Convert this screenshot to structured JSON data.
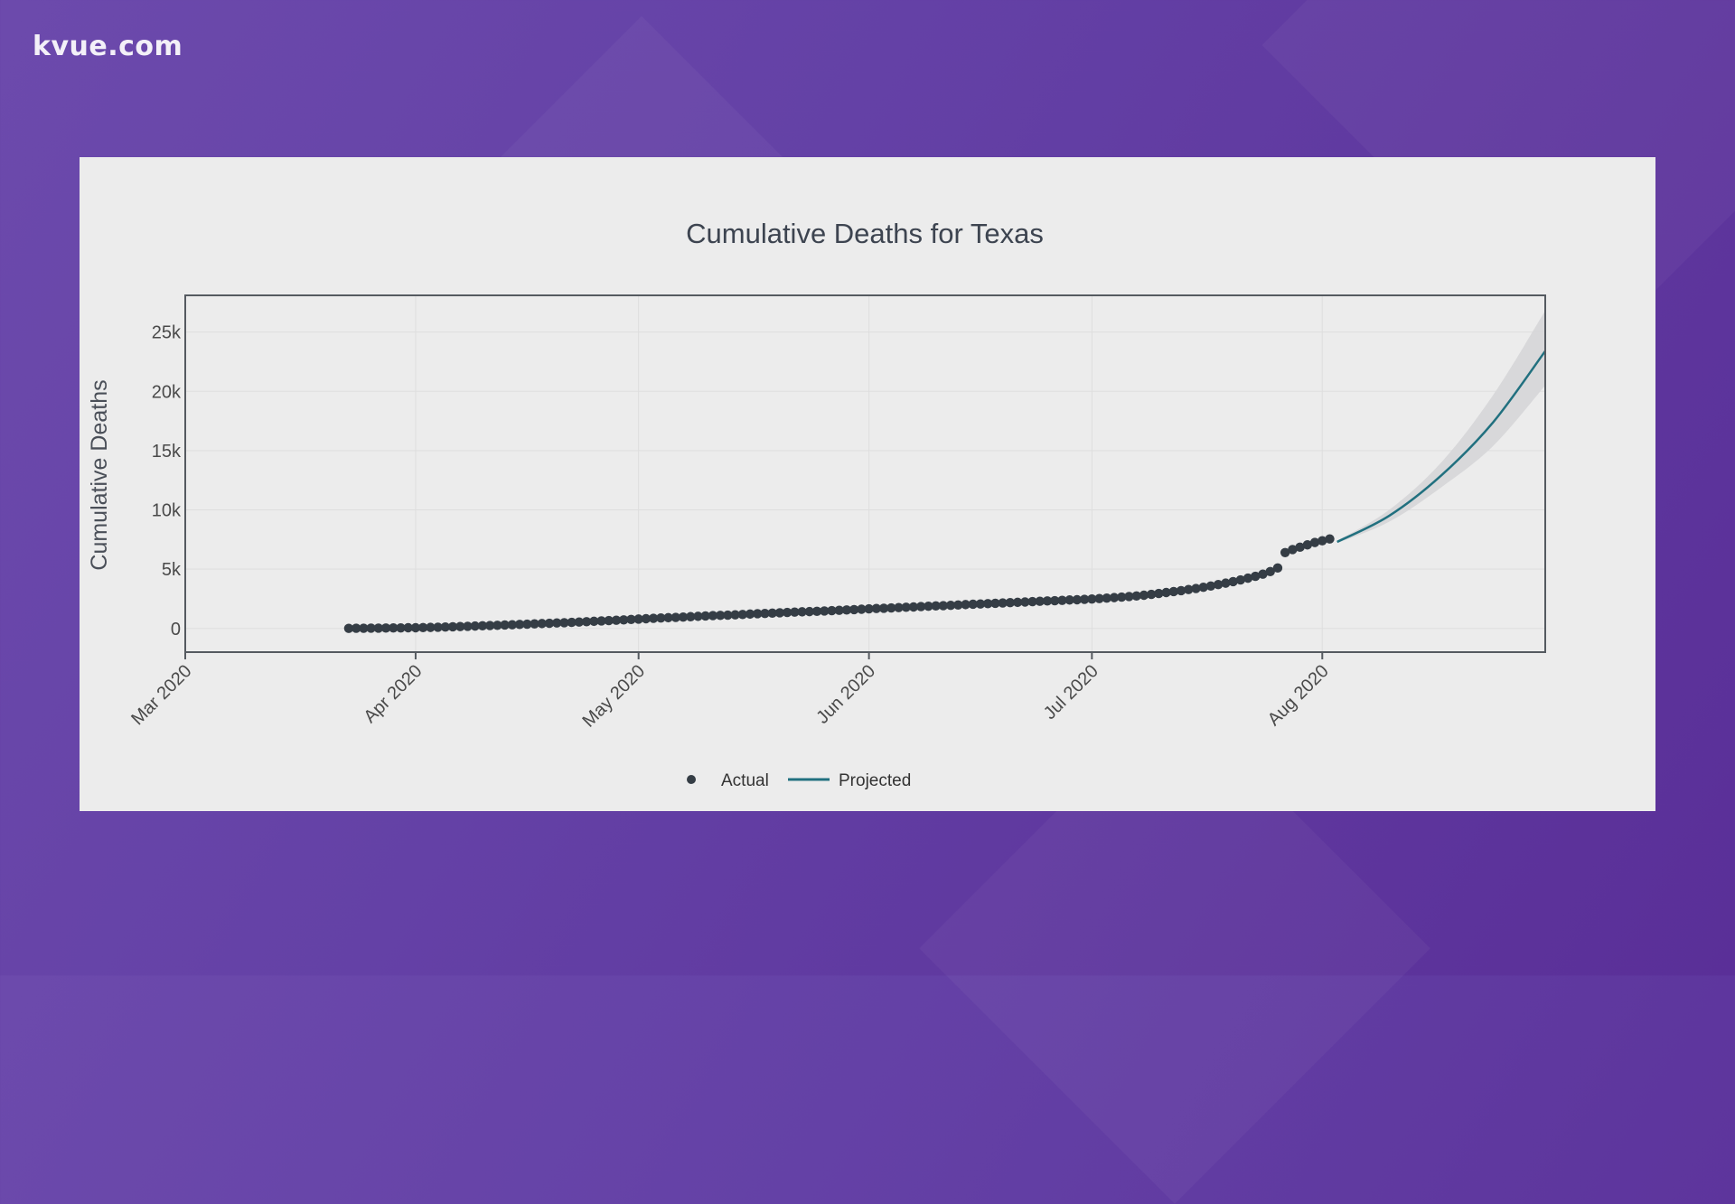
{
  "brand": {
    "logo_text": "kvue.com"
  },
  "colors": {
    "actual": "#353d45",
    "projected": "#21707f",
    "band": "#d6d6d8",
    "grid": "#dedede",
    "frame": "#555a60"
  },
  "chart_data": {
    "type": "scatter+line",
    "title": "Cumulative Deaths for Texas",
    "xlabel": "",
    "ylabel": "Cumulative Deaths",
    "ylim": [
      -2000,
      28100
    ],
    "xlim": [
      "2020-03-01",
      "2020-08-31"
    ],
    "y_ticks": [
      {
        "value": 0,
        "label": "0"
      },
      {
        "value": 5000,
        "label": "5k"
      },
      {
        "value": 10000,
        "label": "10k"
      },
      {
        "value": 15000,
        "label": "15k"
      },
      {
        "value": 20000,
        "label": "20k"
      },
      {
        "value": 25000,
        "label": "25k"
      }
    ],
    "x_ticks": [
      {
        "date": "2020-03-01",
        "label": "Mar 2020"
      },
      {
        "date": "2020-04-01",
        "label": "Apr 2020"
      },
      {
        "date": "2020-05-01",
        "label": "May 2020"
      },
      {
        "date": "2020-06-01",
        "label": "Jun 2020"
      },
      {
        "date": "2020-07-01",
        "label": "Jul 2020"
      },
      {
        "date": "2020-08-01",
        "label": "Aug 2020"
      }
    ],
    "grid": true,
    "legend": {
      "placement": "bottom-center",
      "entries": [
        {
          "name": "Actual",
          "marker": "dot"
        },
        {
          "name": "Projected",
          "marker": "line"
        }
      ]
    },
    "series": [
      {
        "name": "Actual",
        "kind": "scatter",
        "start_date": "2020-03-23",
        "values": [
          8,
          12,
          17,
          22,
          27,
          34,
          41,
          44,
          58,
          58,
          70,
          86,
          103,
          120,
          140,
          160,
          180,
          200,
          222,
          244,
          266,
          288,
          310,
          335,
          360,
          385,
          410,
          435,
          460,
          485,
          510,
          540,
          570,
          600,
          630,
          660,
          690,
          720,
          760,
          790,
          820,
          850,
          880,
          905,
          930,
          960,
          990,
          1020,
          1050,
          1080,
          1100,
          1120,
          1150,
          1180,
          1210,
          1240,
          1260,
          1290,
          1320,
          1350,
          1380,
          1400,
          1420,
          1440,
          1470,
          1500,
          1530,
          1560,
          1590,
          1620,
          1650,
          1680,
          1700,
          1730,
          1760,
          1790,
          1810,
          1840,
          1870,
          1900,
          1920,
          1950,
          1980,
          2010,
          2040,
          2060,
          2090,
          2120,
          2150,
          2180,
          2200,
          2230,
          2260,
          2290,
          2320,
          2340,
          2370,
          2400,
          2420,
          2450,
          2480,
          2520,
          2560,
          2600,
          2640,
          2690,
          2740,
          2800,
          2870,
          2950,
          3030,
          3110,
          3190,
          3280,
          3370,
          3470,
          3580,
          3700,
          3820,
          3950,
          4090,
          4240,
          4400,
          4580,
          4800,
          5100,
          6400,
          6650,
          6850,
          7050,
          7250,
          7400,
          7550
        ]
      },
      {
        "name": "Projected",
        "kind": "line",
        "dates": [
          "2020-08-03",
          "2020-08-10",
          "2020-08-17",
          "2020-08-24",
          "2020-08-31"
        ],
        "values": [
          7300,
          9500,
          12900,
          17400,
          23400
        ],
        "lower": [
          7200,
          9000,
          11900,
          15400,
          20500
        ],
        "upper": [
          7400,
          10000,
          14000,
          19700,
          26800
        ]
      }
    ]
  }
}
